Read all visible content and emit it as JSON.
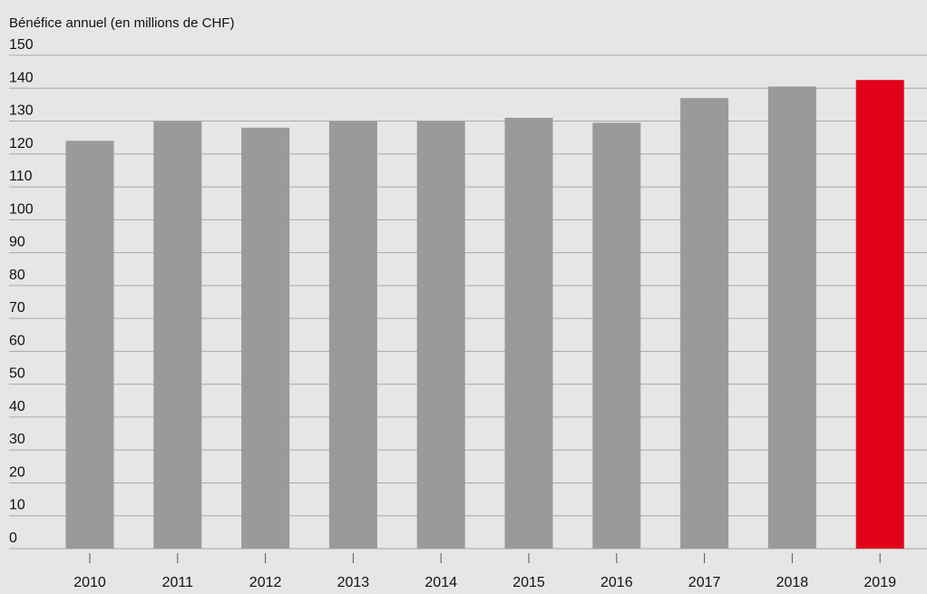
{
  "chart_data": {
    "type": "bar",
    "ylabel": "Bénéfice annuel (en millions de CHF)",
    "categories": [
      "2010",
      "2011",
      "2012",
      "2013",
      "2014",
      "2015",
      "2016",
      "2017",
      "2018",
      "2019"
    ],
    "values": [
      124,
      130,
      128,
      130,
      130,
      131,
      129.5,
      137,
      140.5,
      142.5
    ],
    "highlight_index": 9,
    "ylim": [
      0,
      150
    ],
    "ytick_step": 10,
    "yticks": [
      "0",
      "10",
      "20",
      "30",
      "40",
      "50",
      "60",
      "70",
      "80",
      "90",
      "100",
      "110",
      "120",
      "130",
      "140",
      "150"
    ],
    "grid": true,
    "legend": "none"
  },
  "colors": {
    "background": "#e6e6e6",
    "bar": "#9a9b99",
    "highlight_bar": "#e2001a",
    "gridline": "#a8a8a8",
    "text": "#111111"
  }
}
